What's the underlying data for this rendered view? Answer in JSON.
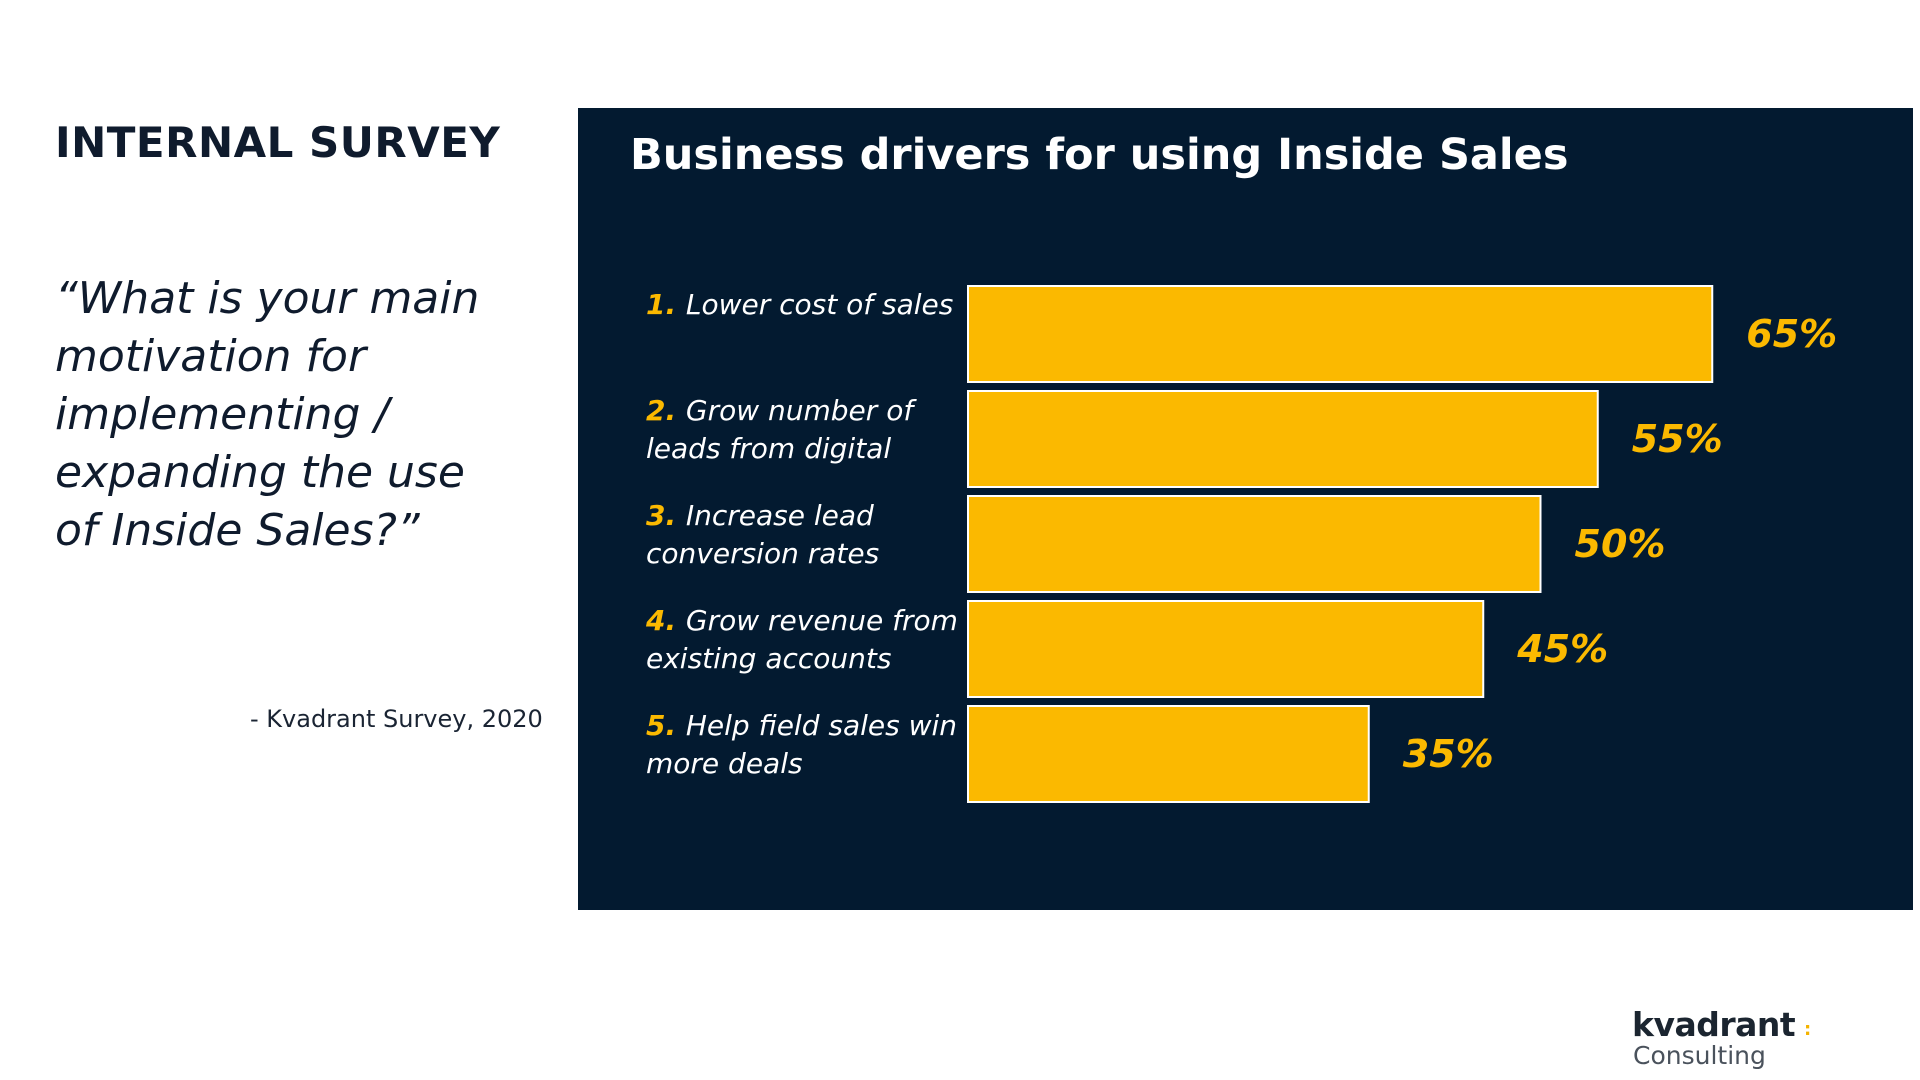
{
  "slide": {
    "heading": "INTERNAL SURVEY",
    "question": "“What is your main motivation for implementing / expanding the use of Inside Sales?”",
    "source": "- Kvadrant Survey, 2020"
  },
  "logo": {
    "name": "kvadrant",
    "dot": ":",
    "sub": "Consulting"
  },
  "colors": {
    "panel_background": "#031a30",
    "bar_fill": "#fbb900",
    "value_label": "#fbb900",
    "category_text": "#ffffff",
    "number_text": "#fbb900"
  },
  "chart_data": {
    "type": "bar",
    "orientation": "horizontal",
    "title": "Business drivers for using Inside Sales",
    "categories": [
      {
        "number": "1.",
        "lines": [
          "Lower cost of sales"
        ]
      },
      {
        "number": "2.",
        "lines": [
          "Grow number of",
          "leads from digital"
        ]
      },
      {
        "number": "3.",
        "lines": [
          "Increase lead",
          "conversion rates"
        ]
      },
      {
        "number": "4.",
        "lines": [
          "Grow revenue from",
          "existing accounts"
        ]
      },
      {
        "number": "5.",
        "lines": [
          "Help field sales win",
          "more deals"
        ]
      }
    ],
    "values": [
      65,
      55,
      50,
      45,
      35
    ],
    "value_labels": [
      "65%",
      "55%",
      "50%",
      "45%",
      "35%"
    ],
    "unit": "%",
    "xlim": [
      0,
      100
    ],
    "grid": false,
    "legend": "none"
  }
}
